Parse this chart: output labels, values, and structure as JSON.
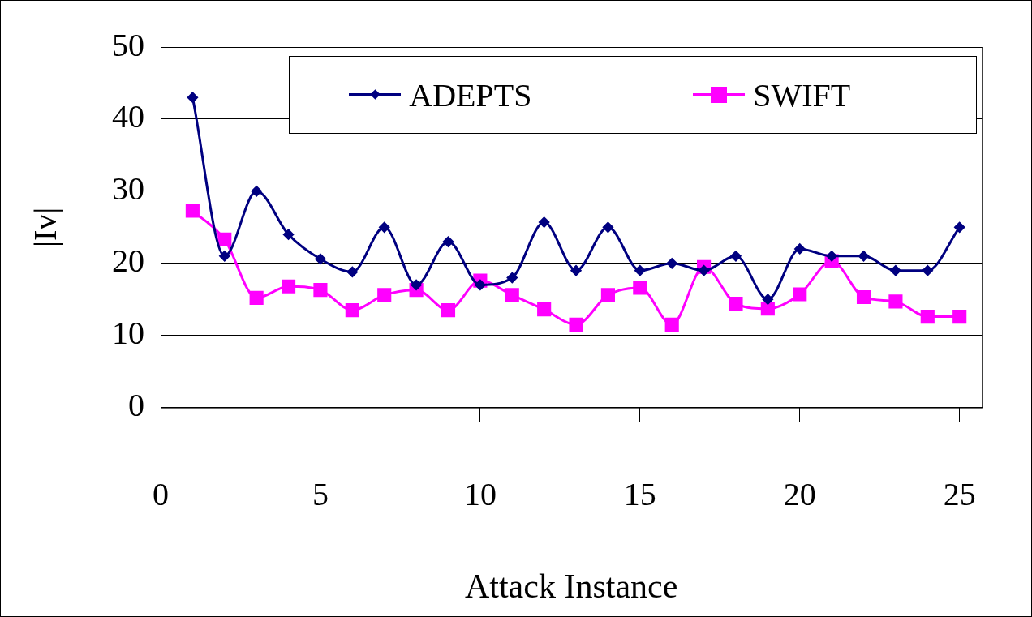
{
  "chart_data": {
    "type": "line",
    "xlabel": "Attack Instance",
    "ylabel": "|Iv|",
    "x": [
      1,
      2,
      3,
      4,
      5,
      6,
      7,
      8,
      9,
      10,
      11,
      12,
      13,
      14,
      15,
      16,
      17,
      18,
      19,
      20,
      21,
      22,
      23,
      24,
      25
    ],
    "series": [
      {
        "name": "ADEPTS",
        "color": "#000080",
        "marker": "diamond",
        "values": [
          43,
          21,
          30,
          24,
          20.6,
          18.8,
          25,
          17,
          23,
          17,
          18,
          25.7,
          19,
          25,
          19,
          20,
          19,
          21,
          15,
          22,
          21,
          21,
          19,
          19,
          25
        ]
      },
      {
        "name": "SWIFT",
        "color": "#ff00ff",
        "marker": "square",
        "values": [
          27.3,
          23.3,
          15.2,
          16.8,
          16.3,
          13.5,
          15.6,
          16.3,
          13.5,
          17.6,
          15.6,
          13.6,
          11.5,
          15.6,
          16.6,
          11.5,
          19.5,
          14.4,
          13.7,
          15.7,
          20.3,
          15.3,
          14.7,
          12.6,
          12.6
        ]
      }
    ],
    "xlim": [
      0,
      25.7
    ],
    "xticks": [
      0,
      5,
      10,
      15,
      20,
      25
    ],
    "ylim": [
      0,
      50
    ],
    "yticks": [
      0,
      10,
      20,
      30,
      40,
      50
    ],
    "grid": "y",
    "legend": "top right",
    "line_style": "solid"
  }
}
